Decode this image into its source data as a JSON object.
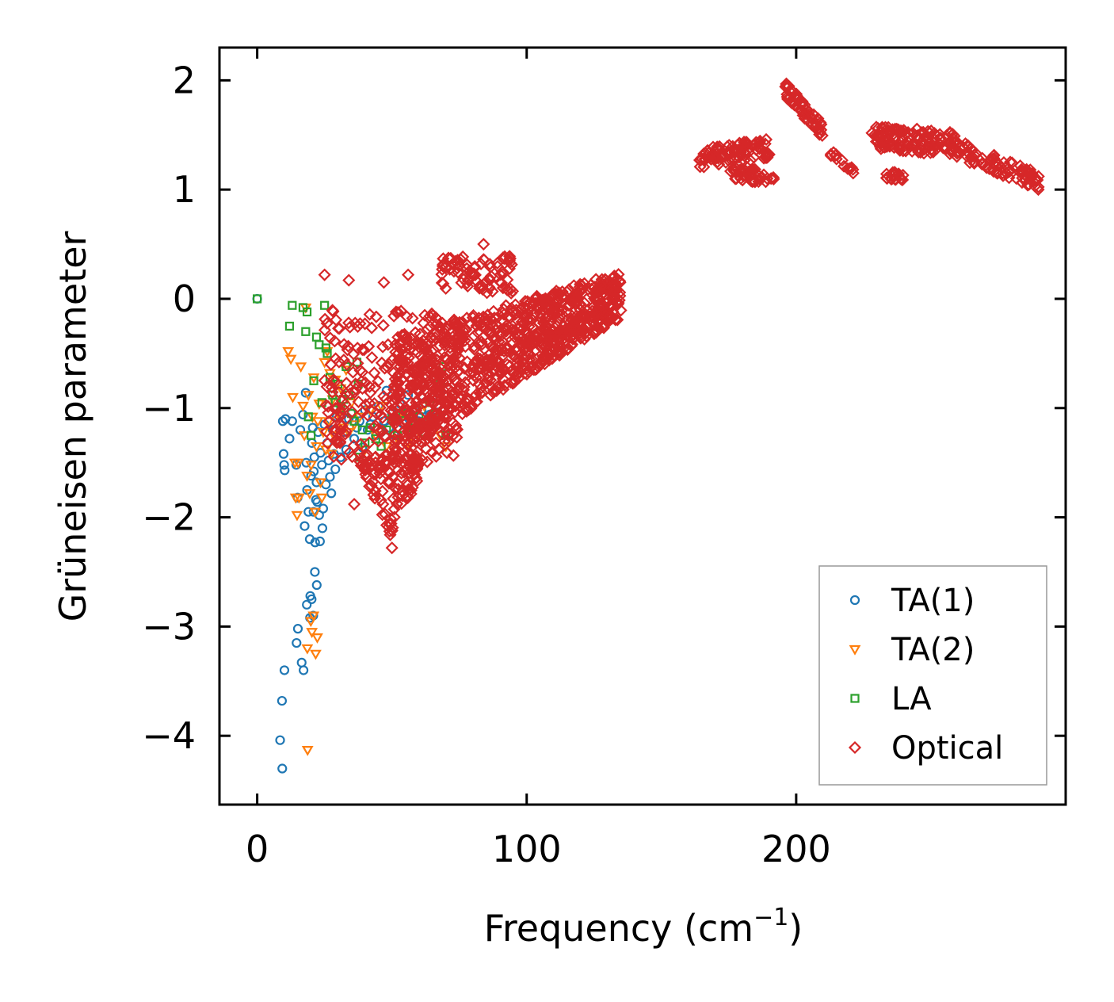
{
  "chart_data": {
    "type": "scatter",
    "title": "",
    "xlabel_main": "Frequency (cm",
    "xlabel_sup": "−1",
    "xlabel_close": ")",
    "ylabel": "Grüneisen parameter",
    "xlim": [
      -14,
      300
    ],
    "ylim": [
      -4.63,
      2.3
    ],
    "xticks": [
      0,
      100,
      200
    ],
    "xtick_labels": [
      "0",
      "100",
      "200"
    ],
    "yticks": [
      2,
      1,
      0,
      -1,
      -2,
      -3,
      -4
    ],
    "ytick_labels": [
      "2",
      "1",
      "0",
      "−1",
      "−2",
      "−3",
      "−4"
    ],
    "legend_position": "lower-right",
    "series": [
      {
        "name": "TA(1)",
        "marker": "circle",
        "color": "#1f77b4",
        "x": [
          0,
          9.5,
          9.8,
          10,
          10.2,
          10.5,
          12,
          13,
          14.5,
          15,
          16,
          17,
          18,
          18.2,
          18.5,
          19,
          19.5,
          20,
          20.3,
          20.6,
          21,
          21.2,
          21.5,
          22,
          22.3,
          22.6,
          23,
          23.5,
          24,
          24.5,
          25,
          25.5,
          26,
          26.5,
          27,
          27.5,
          28,
          28.5,
          29,
          29.5,
          30,
          31,
          32,
          33,
          34,
          35,
          36,
          37,
          38,
          39,
          40,
          41,
          42,
          43,
          44,
          45,
          46,
          47,
          48,
          49,
          50,
          51,
          52,
          53,
          54,
          55,
          56,
          57,
          58,
          59,
          60,
          61,
          62,
          63,
          64,
          65,
          66,
          67,
          68,
          69,
          8.5,
          9.2,
          16.5,
          17.2,
          19.7,
          20.2,
          20.8,
          21.4,
          22.1,
          15.1,
          14.6,
          10.1,
          9.3,
          18.4,
          19.6,
          20.9,
          21.8,
          17.6,
          23.3,
          24.2
        ],
        "y": [
          0,
          -1.12,
          -1.42,
          -1.52,
          -1.57,
          -1.1,
          -1.28,
          -1.12,
          -1.52,
          -1.82,
          -1.2,
          -1.06,
          -0.86,
          -1.5,
          -1.75,
          -1.95,
          -2.2,
          -1.62,
          -1.32,
          -1.18,
          -1.58,
          -1.45,
          -2.23,
          -1.68,
          -1.86,
          -1.22,
          -1.98,
          -1.41,
          -1.52,
          -1.92,
          -1.15,
          -1.7,
          -1.32,
          -1.48,
          -1.63,
          -1.78,
          -1.2,
          -1.42,
          -1.56,
          -1.08,
          -1.3,
          -1.45,
          -1.22,
          -1.38,
          -1.1,
          -1.05,
          -1.28,
          -1.18,
          -1.12,
          -1.36,
          -1.02,
          -1.2,
          -1.15,
          -1.08,
          -1.25,
          -0.98,
          -1.22,
          -1.12,
          -0.84,
          -1.18,
          -1.05,
          -1.25,
          -1.1,
          -0.96,
          -1.14,
          -1.04,
          -0.88,
          -1.2,
          -1.08,
          -1.0,
          -1.12,
          -1.02,
          -0.95,
          -1.15,
          -1.06,
          -0.9,
          -1.1,
          -1.04,
          -0.85,
          -1.02,
          -4.04,
          -3.68,
          -3.33,
          -3.4,
          -2.72,
          -2.75,
          -2.9,
          -2.5,
          -2.62,
          -3.02,
          -3.15,
          -3.4,
          -4.3,
          -2.8,
          -2.92,
          -1.95,
          -1.84,
          -2.08,
          -2.22,
          -2.1
        ],
        "x_extra": [
          21.5,
          18.3,
          17.8
        ]
      },
      {
        "name": "TA(2)",
        "marker": "triangle-down",
        "color": "#ff7f0e",
        "x": [
          11.5,
          12.5,
          13.2,
          14,
          14.8,
          15.5,
          16.2,
          17,
          17.5,
          18,
          18.5,
          19,
          19.5,
          20,
          20.5,
          21,
          21.5,
          22,
          22.5,
          23,
          23.5,
          24,
          24.5,
          25,
          25.5,
          26,
          26.5,
          27,
          27.5,
          28,
          28.5,
          29,
          29.5,
          30,
          31,
          32,
          33,
          34,
          35,
          36,
          38,
          40,
          42,
          44,
          46,
          48,
          50,
          52,
          54,
          56,
          58,
          60,
          62,
          64,
          66,
          68,
          70,
          15.2,
          14.3,
          18.7,
          20.3,
          21.7,
          22.3,
          20.9,
          19.9,
          18.6
        ],
        "y": [
          -0.48,
          -0.55,
          -0.9,
          -1.5,
          -1.98,
          -1.82,
          -0.62,
          -0.98,
          -1.25,
          -0.08,
          -1.62,
          -0.88,
          -1.78,
          -1.52,
          -1.08,
          -0.72,
          -1.95,
          -1.35,
          -1.12,
          -0.96,
          -1.68,
          -1.82,
          -1.22,
          -0.58,
          -1.38,
          -0.48,
          -1.12,
          -0.68,
          -1.42,
          -0.92,
          -1.25,
          -0.74,
          -1.32,
          -1.05,
          -0.82,
          -1.18,
          -0.65,
          -1.22,
          -0.95,
          -1.15,
          -1.08,
          -1.38,
          -1.02,
          -1.25,
          -0.98,
          -1.35,
          -1.12,
          -1.28,
          -1.05,
          -1.32,
          -1.08,
          -1.22,
          -0.98,
          -1.15,
          -1.05,
          -1.25,
          -1.35,
          -1.5,
          -1.82,
          -4.13,
          -3.05,
          -3.25,
          -3.1,
          -2.9,
          -2.95,
          -3.2
        ]
      },
      {
        "name": "LA",
        "marker": "square",
        "color": "#2ca02c",
        "x": [
          0,
          12,
          13,
          17,
          18,
          18.5,
          19,
          20,
          21,
          22,
          23,
          24,
          25,
          26,
          27,
          28,
          29,
          30,
          31,
          32,
          33,
          34,
          35,
          36,
          37,
          38,
          39,
          40,
          42,
          44,
          46,
          48,
          50,
          52,
          54,
          56,
          58,
          60,
          62,
          64,
          66,
          68,
          69,
          70,
          25.5,
          37.5
        ],
        "y": [
          0,
          -0.25,
          -0.06,
          -0.08,
          -0.3,
          -0.12,
          -1.08,
          -1.25,
          -0.75,
          -0.35,
          -0.42,
          -0.95,
          -0.06,
          -0.5,
          -0.72,
          -0.88,
          -0.95,
          -0.78,
          -1.0,
          -0.92,
          -0.62,
          -0.88,
          -1.05,
          -1.12,
          -0.58,
          -1.45,
          -1.2,
          -1.32,
          -1.18,
          -1.28,
          -1.35,
          -1.2,
          -1.1,
          -1.25,
          -1.05,
          -1.18,
          -1.12,
          -1.08,
          -1.22,
          -0.95,
          -1.05,
          -0.78,
          -0.62,
          -1.25,
          -0.45,
          -0.78
        ]
      },
      {
        "name": "Optical",
        "marker": "diamond",
        "color": "#d62728",
        "generated": true
      }
    ]
  }
}
